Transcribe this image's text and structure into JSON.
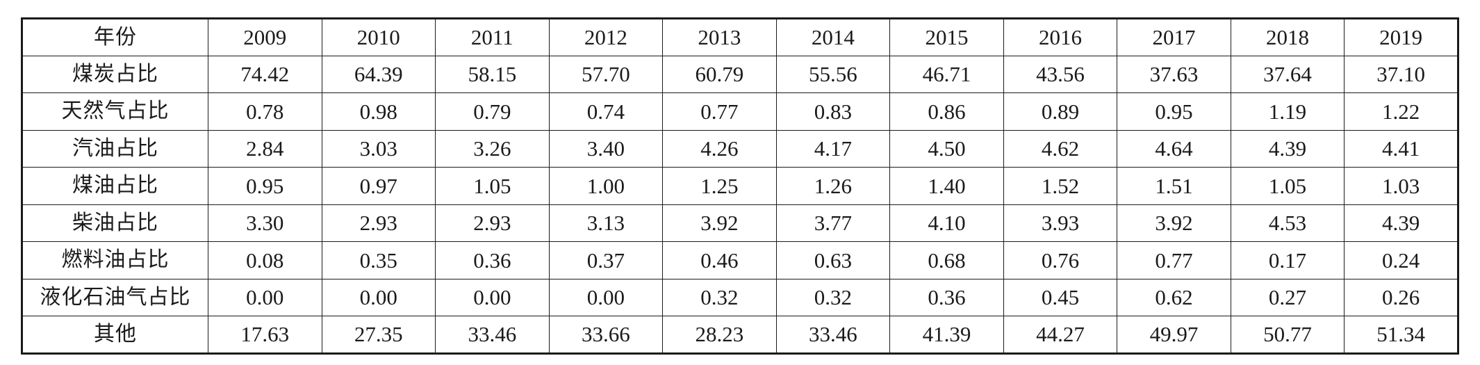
{
  "table": {
    "header_label": "年份",
    "years": [
      "2009",
      "2010",
      "2011",
      "2012",
      "2013",
      "2014",
      "2015",
      "2016",
      "2017",
      "2018",
      "2019"
    ],
    "rows": [
      {
        "label": "煤炭占比",
        "values": [
          "74.42",
          "64.39",
          "58.15",
          "57.70",
          "60.79",
          "55.56",
          "46.71",
          "43.56",
          "37.63",
          "37.64",
          "37.10"
        ]
      },
      {
        "label": "天然气占比",
        "values": [
          "0.78",
          "0.98",
          "0.79",
          "0.74",
          "0.77",
          "0.83",
          "0.86",
          "0.89",
          "0.95",
          "1.19",
          "1.22"
        ]
      },
      {
        "label": "汽油占比",
        "values": [
          "2.84",
          "3.03",
          "3.26",
          "3.40",
          "4.26",
          "4.17",
          "4.50",
          "4.62",
          "4.64",
          "4.39",
          "4.41"
        ]
      },
      {
        "label": "煤油占比",
        "values": [
          "0.95",
          "0.97",
          "1.05",
          "1.00",
          "1.25",
          "1.26",
          "1.40",
          "1.52",
          "1.51",
          "1.05",
          "1.03"
        ]
      },
      {
        "label": "柴油占比",
        "values": [
          "3.30",
          "2.93",
          "2.93",
          "3.13",
          "3.92",
          "3.77",
          "4.10",
          "3.93",
          "3.92",
          "4.53",
          "4.39"
        ]
      },
      {
        "label": "燃料油占比",
        "values": [
          "0.08",
          "0.35",
          "0.36",
          "0.37",
          "0.46",
          "0.63",
          "0.68",
          "0.76",
          "0.77",
          "0.17",
          "0.24"
        ]
      },
      {
        "label": "液化石油气占比",
        "values": [
          "0.00",
          "0.00",
          "0.00",
          "0.00",
          "0.32",
          "0.32",
          "0.36",
          "0.45",
          "0.62",
          "0.27",
          "0.26"
        ]
      },
      {
        "label": "其他",
        "values": [
          "17.63",
          "27.35",
          "33.46",
          "33.66",
          "28.23",
          "33.46",
          "41.39",
          "44.27",
          "49.97",
          "50.77",
          "51.34"
        ]
      }
    ]
  }
}
